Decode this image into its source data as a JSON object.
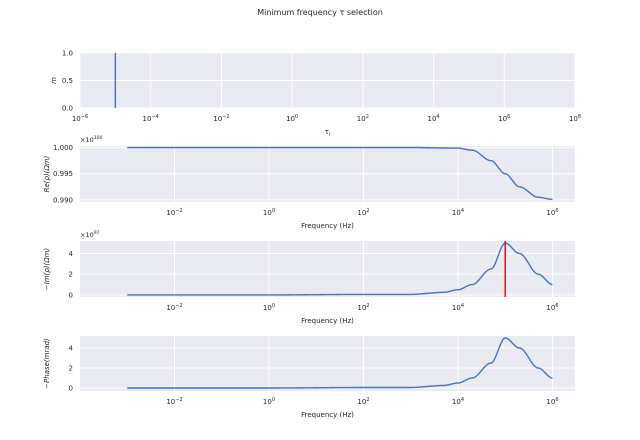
{
  "figure": {
    "title": "Minimum frequency τ selection"
  },
  "colors": {
    "background": "#eaeaf2",
    "grid": "#ffffff",
    "line": "#4c72b0",
    "marker": "#e8000b",
    "text": "#262626"
  },
  "chart_data": [
    {
      "type": "line",
      "title": "",
      "xlabel": "τ_i",
      "ylabel": "m",
      "xscale": "log",
      "xlim": [
        1e-06,
        100000000.0
      ],
      "ylim": [
        0.0,
        1.0
      ],
      "xticks": [
        1e-06,
        0.0001,
        0.01,
        1,
        100,
        10000,
        1000000,
        100000000
      ],
      "xtick_labels": [
        "10^-6",
        "10^-4",
        "10^-2",
        "10^0",
        "10^2",
        "10^4",
        "10^6",
        "10^8"
      ],
      "yticks": [
        0.0,
        0.5,
        1.0
      ],
      "ytick_labels": [
        "0.0",
        "0.5",
        "1.0"
      ],
      "grid": true,
      "series": [
        {
          "x": [
            1e-05,
            1e-05
          ],
          "y": [
            0.0,
            1.0
          ],
          "color": "#4c72b0"
        }
      ]
    },
    {
      "type": "line",
      "title": "",
      "xlabel": "Frequency (Hz)",
      "ylabel": "Re(ρ)(Ωm)",
      "multiplier": "×10^100",
      "xscale": "log",
      "xlim": [
        0.0001,
        3000000
      ],
      "ylim": [
        0.9896,
        1.0003
      ],
      "xticks": [
        0.01,
        1,
        100,
        10000,
        1000000
      ],
      "xtick_labels": [
        "10^-2",
        "10^0",
        "10^2",
        "10^4",
        "10^6"
      ],
      "yticks": [
        0.99,
        0.995,
        1.0
      ],
      "ytick_labels": [
        "0.990",
        "0.995",
        "1.000"
      ],
      "grid": true,
      "series": [
        {
          "x": [
            0.001,
            1,
            1000,
            10000,
            20000,
            50000,
            100000,
            200000,
            500000,
            1000000
          ],
          "y": [
            1.0,
            1.0,
            1.0,
            0.9999,
            0.9995,
            0.9975,
            0.995,
            0.9925,
            0.9905,
            0.9901
          ],
          "color": "#4c72b0"
        }
      ]
    },
    {
      "type": "line",
      "title": "",
      "xlabel": "Frequency (Hz)",
      "ylabel": "−Im(ρ)(Ωm)",
      "multiplier": "×10^97",
      "xscale": "log",
      "xlim": [
        0.0001,
        3000000
      ],
      "ylim": [
        -0.2,
        5.2
      ],
      "xticks": [
        0.01,
        1,
        100,
        10000,
        1000000
      ],
      "xtick_labels": [
        "10^-2",
        "10^0",
        "10^2",
        "10^4",
        "10^6"
      ],
      "yticks": [
        0,
        2,
        4
      ],
      "ytick_labels": [
        "0",
        "2",
        "4"
      ],
      "grid": true,
      "series": [
        {
          "x": [
            0.001,
            1,
            100,
            1000,
            5000,
            10000,
            20000,
            50000,
            100000,
            200000,
            500000,
            1000000
          ],
          "y": [
            0.0,
            0.0,
            0.05,
            0.05,
            0.25,
            0.5,
            1.0,
            2.5,
            5.0,
            4.0,
            2.0,
            1.0
          ],
          "color": "#4c72b0"
        }
      ],
      "vlines": [
        {
          "x": 100000,
          "ymin": -0.2,
          "ymax": 5.2,
          "color": "#e8000b"
        }
      ]
    },
    {
      "type": "line",
      "title": "",
      "xlabel": "Frequency (Hz)",
      "ylabel": "−Phase(mrad)",
      "xscale": "log",
      "xlim": [
        0.0001,
        3000000
      ],
      "ylim": [
        -0.3,
        5.2
      ],
      "xticks": [
        0.01,
        1,
        100,
        10000,
        1000000
      ],
      "xtick_labels": [
        "10^-2",
        "10^0",
        "10^2",
        "10^4",
        "10^6"
      ],
      "yticks": [
        0,
        2,
        4
      ],
      "ytick_labels": [
        "0",
        "2",
        "4"
      ],
      "grid": true,
      "series": [
        {
          "x": [
            0.001,
            1,
            100,
            1000,
            5000,
            10000,
            20000,
            50000,
            100000,
            200000,
            500000,
            1000000
          ],
          "y": [
            0.0,
            0.0,
            0.05,
            0.05,
            0.25,
            0.5,
            1.0,
            2.5,
            5.0,
            4.0,
            2.0,
            1.0
          ],
          "color": "#4c72b0"
        }
      ]
    }
  ]
}
